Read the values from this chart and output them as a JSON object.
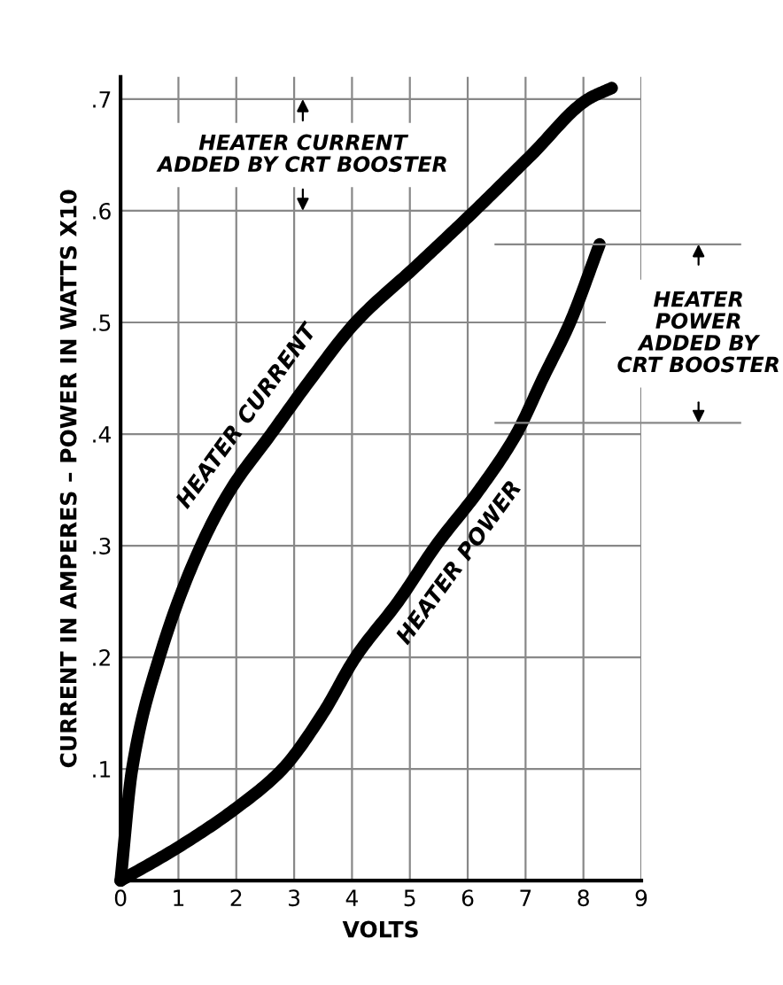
{
  "chart_data": {
    "type": "line",
    "xlabel": "VOLTS",
    "ylabel": "CURRENT IN AMPERES – POWER IN WATTS X10",
    "xlim": [
      0,
      9
    ],
    "xticks": [
      0,
      1,
      2,
      3,
      4,
      5,
      6,
      7,
      8,
      9
    ],
    "ylim": [
      0,
      0.72
    ],
    "yticks": [
      {
        "value": 0.1,
        "label": ".1"
      },
      {
        "value": 0.2,
        "label": ".2"
      },
      {
        "value": 0.3,
        "label": ".3"
      },
      {
        "value": 0.4,
        "label": ".4"
      },
      {
        "value": 0.5,
        "label": ".5"
      },
      {
        "value": 0.6,
        "label": ".6"
      },
      {
        "value": 0.7,
        "label": ".7"
      }
    ],
    "grid": true,
    "marker": "none",
    "line_style": "solid",
    "series": [
      {
        "name": "HEATER CURRENT",
        "color": "#000000",
        "x": [
          0,
          0.2,
          0.67,
          1.39,
          1.9,
          2.6,
          3.3,
          4.06,
          5.1,
          6.12,
          7.1,
          8.08,
          8.49
        ],
        "values": [
          0,
          0.1,
          0.2,
          0.3,
          0.35,
          0.4,
          0.45,
          0.5,
          0.55,
          0.6,
          0.65,
          0.7,
          0.71
        ]
      },
      {
        "name": "HEATER POWER",
        "color": "#000000",
        "x": [
          0,
          1,
          2,
          2.8,
          3.5,
          4.06,
          4.8,
          5.45,
          6.2,
          6.84,
          7.3,
          7.77,
          8.28
        ],
        "values": [
          0,
          0.03,
          0.065,
          0.1,
          0.15,
          0.2,
          0.25,
          0.3,
          0.35,
          0.4,
          0.45,
          0.5,
          0.57
        ]
      }
    ],
    "ref_lines": [
      {
        "axis": "y",
        "value": 0.57,
        "color": "#888888"
      },
      {
        "axis": "y",
        "value": 0.41,
        "color": "#888888"
      }
    ],
    "annotations": [
      "HEATER CURRENT\nADDED BY CRT BOOSTER",
      "HEATER\nPOWER\nADDED BY\nCRT BOOSTER"
    ]
  }
}
